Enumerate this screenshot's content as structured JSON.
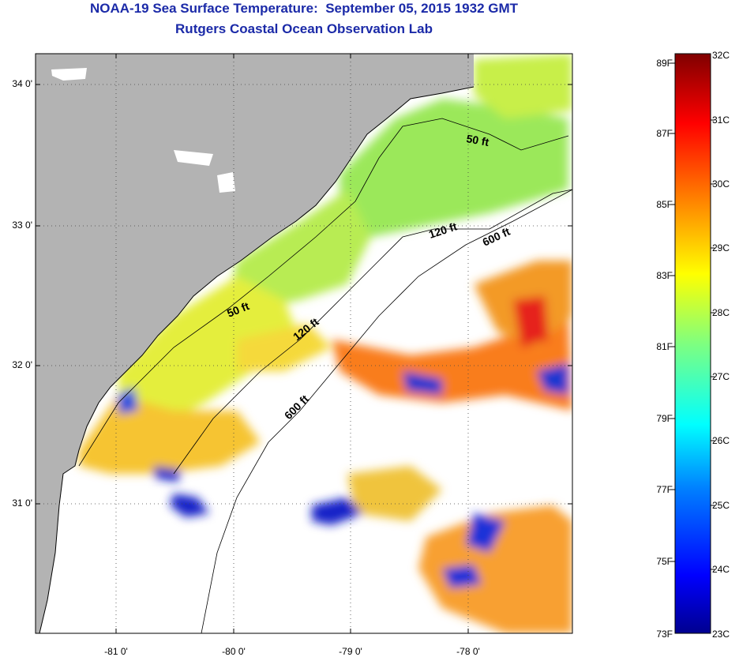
{
  "title": {
    "line1": "NOAA-19 Sea Surface Temperature:  September 05, 2015 1932 GMT",
    "line2": "Rutgers Coastal Ocean Observation Lab"
  },
  "latitude_labels": [
    "34 0'",
    "33 0'",
    "32 0'",
    "31 0'"
  ],
  "longitude_labels": [
    "-81 0'",
    "-80 0'",
    "-79 0'",
    "-78 0'"
  ],
  "isobath_labels": [
    "50 ft",
    "120 ft",
    "600 ft",
    "50 ft",
    "120 ft",
    "600 ft"
  ],
  "colorbar": {
    "fahrenheit_labels": [
      "89F",
      "87F",
      "85F",
      "83F",
      "81F",
      "79F",
      "77F",
      "75F",
      "73F"
    ],
    "celsius_labels": [
      "32C",
      "31C",
      "30C",
      "29C",
      "28C",
      "27C",
      "26C",
      "25C",
      "24C",
      "23C"
    ]
  },
  "colors": {
    "land": "#b3b3b3",
    "cloud": "#ffffff",
    "title": "#1b2aa8",
    "coastline": "#000000"
  }
}
